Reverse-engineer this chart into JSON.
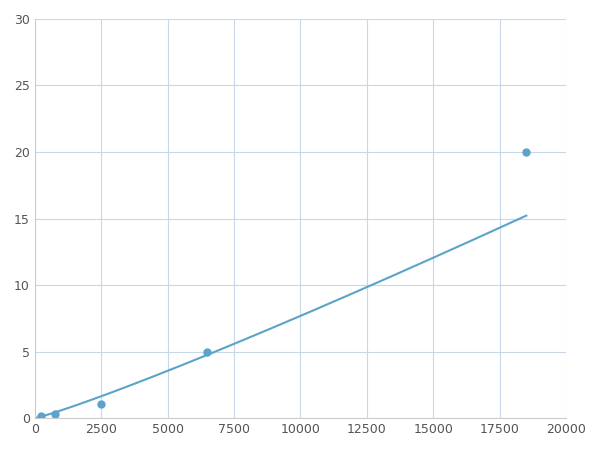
{
  "x_points": [
    250,
    750,
    2500,
    6500,
    18500
  ],
  "y_points": [
    0.2,
    0.3,
    1.1,
    5.0,
    20.0
  ],
  "line_color": "#5ba3c9",
  "marker_color": "#5ba3c9",
  "marker_size": 5,
  "line_width": 1.5,
  "xlim": [
    0,
    20000
  ],
  "ylim": [
    0,
    30
  ],
  "xticks": [
    0,
    2500,
    5000,
    7500,
    10000,
    12500,
    15000,
    17500,
    20000
  ],
  "yticks": [
    0,
    5,
    10,
    15,
    20,
    25,
    30
  ],
  "grid_color": "#c8d8e8",
  "background_color": "#ffffff",
  "figsize": [
    6.0,
    4.5
  ],
  "dpi": 100
}
